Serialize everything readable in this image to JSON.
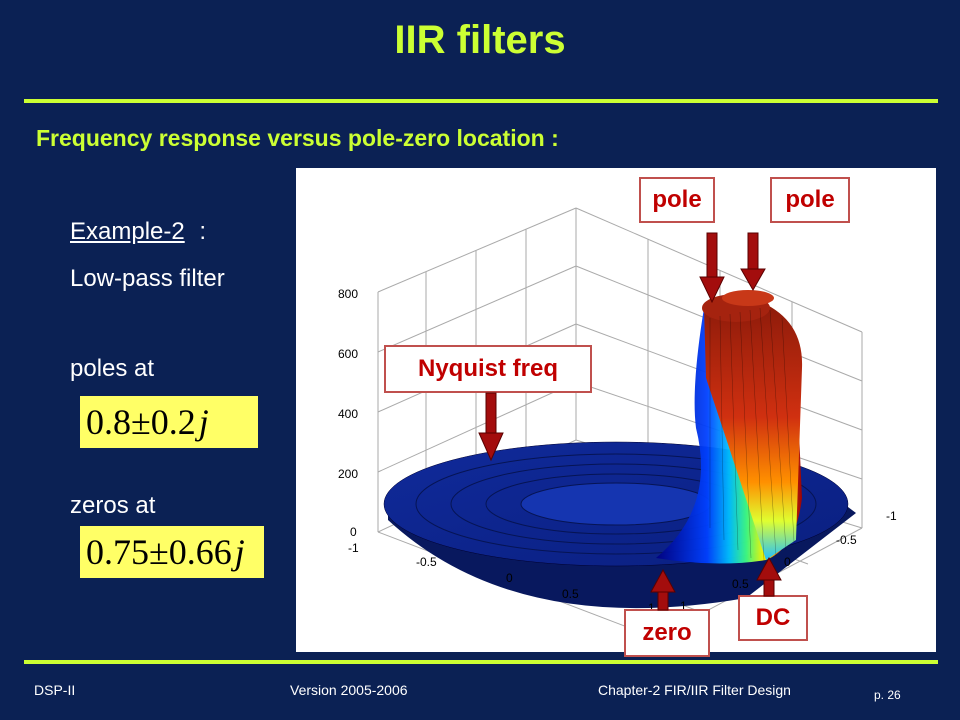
{
  "slide": {
    "title": "IIR filters",
    "subtitle": "Frequency response versus pole-zero location :",
    "example_label": "Example-2",
    "example_colon": ":",
    "filter_type": "Low-pass filter",
    "poles_label": "poles at",
    "poles_equation": {
      "value": "0.8",
      "pm": "±",
      "imag": "0.2",
      "j": "j"
    },
    "zeros_label": "zeros at",
    "zeros_equation": {
      "value": "0.75",
      "pm": "±",
      "imag": "0.66",
      "j": "j"
    }
  },
  "plot": {
    "z_ticks": [
      "800",
      "600",
      "400",
      "200",
      "0"
    ],
    "front_ticks": [
      "-1",
      "-0.5",
      "0",
      "0.5",
      "1"
    ],
    "right_ticks": [
      "-1",
      "-0.5",
      "0",
      "0.5",
      "1"
    ],
    "surface_colormap": "jet"
  },
  "callouts": {
    "pole_1": "pole",
    "pole_2": "pole",
    "nyquist": "Nyquist freq",
    "zero": "zero",
    "dc": "DC"
  },
  "footer": {
    "course": "DSP-II",
    "version": "Version 2005-2006",
    "chapter": "Chapter-2 FIR/IIR Filter Design",
    "page": "p. 26"
  },
  "colors": {
    "background": "#0b2154",
    "accent": "#ccff33",
    "callout_red": "#c00000",
    "equation_bg": "#ffff66"
  }
}
